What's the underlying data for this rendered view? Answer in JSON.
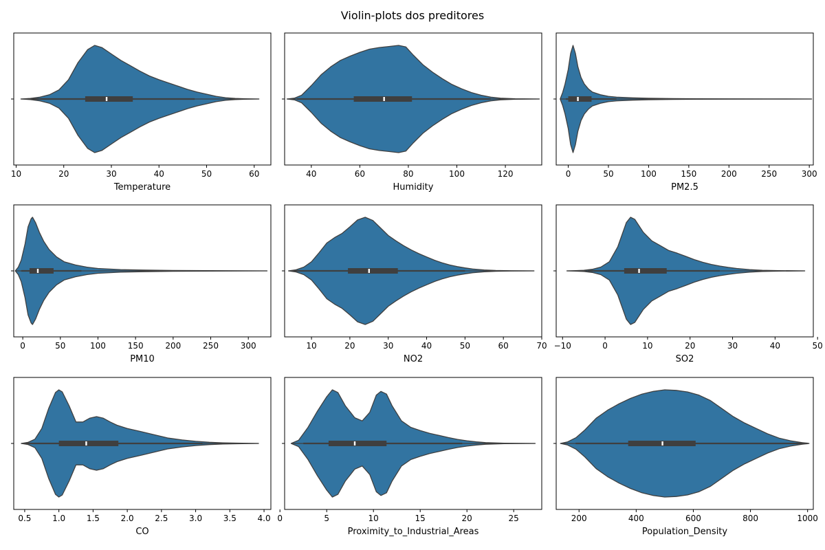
{
  "figure": {
    "title": "Violin-plots dos preditores"
  },
  "style": {
    "violin_fill": "#3274a1",
    "violin_edge": "#3f3f3f",
    "box_color": "#3f3f3f",
    "median_color": "#ffffff"
  },
  "chart_data": [
    {
      "type": "violin",
      "xlabel": "Temperature",
      "xlim": [
        9.5,
        63.5
      ],
      "ticks": [
        10,
        20,
        30,
        40,
        50,
        60
      ],
      "data_range": [
        11,
        61
      ],
      "whiskers": [
        13.5,
        47.5
      ],
      "quartiles": [
        24.5,
        34.5
      ],
      "median": 29,
      "density": [
        [
          11,
          0
        ],
        [
          13,
          0.012
        ],
        [
          15,
          0.035
        ],
        [
          17,
          0.08
        ],
        [
          19,
          0.17
        ],
        [
          21,
          0.36
        ],
        [
          23,
          0.68
        ],
        [
          25,
          0.92
        ],
        [
          26.5,
          1.0
        ],
        [
          28,
          0.96
        ],
        [
          30,
          0.84
        ],
        [
          32,
          0.72
        ],
        [
          34,
          0.62
        ],
        [
          36,
          0.52
        ],
        [
          38,
          0.43
        ],
        [
          40,
          0.36
        ],
        [
          42,
          0.3
        ],
        [
          44,
          0.24
        ],
        [
          46,
          0.18
        ],
        [
          48,
          0.13
        ],
        [
          50,
          0.09
        ],
        [
          52,
          0.05
        ],
        [
          54,
          0.025
        ],
        [
          56,
          0.012
        ],
        [
          58,
          0.005
        ],
        [
          61,
          0
        ]
      ]
    },
    {
      "type": "violin",
      "xlabel": "Humidity",
      "xlim": [
        29,
        135
      ],
      "ticks": [
        40,
        60,
        80,
        100,
        120
      ],
      "data_range": [
        30,
        134
      ],
      "whiskers": [
        34,
        114
      ],
      "quartiles": [
        57.5,
        81.5
      ],
      "median": 70,
      "density": [
        [
          30,
          0
        ],
        [
          33,
          0.015
        ],
        [
          36,
          0.07
        ],
        [
          40,
          0.25
        ],
        [
          44,
          0.45
        ],
        [
          48,
          0.6
        ],
        [
          52,
          0.72
        ],
        [
          56,
          0.8
        ],
        [
          60,
          0.87
        ],
        [
          64,
          0.93
        ],
        [
          68,
          0.96
        ],
        [
          72,
          0.98
        ],
        [
          76,
          1.0
        ],
        [
          79,
          0.97
        ],
        [
          82,
          0.82
        ],
        [
          86,
          0.64
        ],
        [
          90,
          0.5
        ],
        [
          94,
          0.38
        ],
        [
          98,
          0.27
        ],
        [
          102,
          0.19
        ],
        [
          106,
          0.12
        ],
        [
          110,
          0.07
        ],
        [
          114,
          0.035
        ],
        [
          118,
          0.015
        ],
        [
          124,
          0.005
        ],
        [
          134,
          0
        ]
      ]
    },
    {
      "type": "violin",
      "xlabel": "PM2.5",
      "xlim": [
        -15,
        305
      ],
      "ticks": [
        0,
        50,
        100,
        150,
        200,
        250,
        300
      ],
      "data_range": [
        -10,
        303
      ],
      "whiskers": [
        -3,
        60
      ],
      "quartiles": [
        0,
        29
      ],
      "median": 12,
      "density": [
        [
          -10,
          0
        ],
        [
          -7,
          0.12
        ],
        [
          -4,
          0.28
        ],
        [
          0,
          0.55
        ],
        [
          3,
          0.85
        ],
        [
          6,
          1.0
        ],
        [
          9,
          0.85
        ],
        [
          12,
          0.6
        ],
        [
          16,
          0.4
        ],
        [
          20,
          0.28
        ],
        [
          25,
          0.19
        ],
        [
          30,
          0.13
        ],
        [
          40,
          0.08
        ],
        [
          50,
          0.05
        ],
        [
          60,
          0.035
        ],
        [
          80,
          0.022
        ],
        [
          100,
          0.014
        ],
        [
          130,
          0.008
        ],
        [
          160,
          0.005
        ],
        [
          200,
          0.003
        ],
        [
          250,
          0.0015
        ],
        [
          303,
          0
        ]
      ]
    },
    {
      "type": "violin",
      "xlabel": "PM10",
      "xlim": [
        -12,
        330
      ],
      "ticks": [
        0,
        50,
        100,
        150,
        200,
        250,
        300
      ],
      "data_range": [
        -10,
        325
      ],
      "whiskers": [
        -2,
        78
      ],
      "quartiles": [
        9,
        41
      ],
      "median": 20,
      "density": [
        [
          -10,
          0
        ],
        [
          -6,
          0.07
        ],
        [
          -2,
          0.2
        ],
        [
          3,
          0.5
        ],
        [
          7,
          0.82
        ],
        [
          11,
          0.97
        ],
        [
          13,
          1.0
        ],
        [
          17,
          0.9
        ],
        [
          22,
          0.72
        ],
        [
          28,
          0.55
        ],
        [
          35,
          0.4
        ],
        [
          45,
          0.26
        ],
        [
          55,
          0.17
        ],
        [
          70,
          0.11
        ],
        [
          85,
          0.07
        ],
        [
          100,
          0.045
        ],
        [
          130,
          0.025
        ],
        [
          160,
          0.015
        ],
        [
          200,
          0.008
        ],
        [
          250,
          0.004
        ],
        [
          325,
          0
        ]
      ]
    },
    {
      "type": "violin",
      "xlabel": "NO2",
      "xlim": [
        3,
        70
      ],
      "ticks": [
        10,
        20,
        30,
        40,
        50,
        60,
        70
      ],
      "data_range": [
        4,
        68
      ],
      "whiskers": [
        5,
        50
      ],
      "quartiles": [
        19.5,
        32.5
      ],
      "median": 25,
      "density": [
        [
          4,
          0
        ],
        [
          6,
          0.02
        ],
        [
          8,
          0.07
        ],
        [
          10,
          0.17
        ],
        [
          12,
          0.34
        ],
        [
          14,
          0.52
        ],
        [
          16,
          0.62
        ],
        [
          18,
          0.7
        ],
        [
          20,
          0.82
        ],
        [
          22,
          0.95
        ],
        [
          24,
          1.0
        ],
        [
          26,
          0.94
        ],
        [
          28,
          0.8
        ],
        [
          30,
          0.66
        ],
        [
          32,
          0.56
        ],
        [
          34,
          0.47
        ],
        [
          36,
          0.39
        ],
        [
          38,
          0.32
        ],
        [
          40,
          0.26
        ],
        [
          42,
          0.2
        ],
        [
          44,
          0.15
        ],
        [
          46,
          0.11
        ],
        [
          48,
          0.08
        ],
        [
          50,
          0.055
        ],
        [
          52,
          0.035
        ],
        [
          55,
          0.018
        ],
        [
          58,
          0.008
        ],
        [
          62,
          0.003
        ],
        [
          68,
          0
        ]
      ]
    },
    {
      "type": "violin",
      "xlabel": "SO2",
      "xlim": [
        -11.5,
        49
      ],
      "ticks": [
        -10,
        0,
        10,
        20,
        30,
        40,
        50
      ],
      "data_range": [
        -9,
        47
      ],
      "whiskers": [
        -4,
        27
      ],
      "quartiles": [
        4.5,
        14.5
      ],
      "median": 8,
      "density": [
        [
          -9,
          0
        ],
        [
          -7,
          0.005
        ],
        [
          -5,
          0.012
        ],
        [
          -3,
          0.03
        ],
        [
          -1,
          0.07
        ],
        [
          1,
          0.17
        ],
        [
          3,
          0.45
        ],
        [
          5,
          0.9
        ],
        [
          6,
          1.0
        ],
        [
          7,
          0.96
        ],
        [
          9,
          0.72
        ],
        [
          11,
          0.56
        ],
        [
          13,
          0.47
        ],
        [
          15,
          0.38
        ],
        [
          17,
          0.33
        ],
        [
          19,
          0.27
        ],
        [
          21,
          0.21
        ],
        [
          23,
          0.16
        ],
        [
          25,
          0.12
        ],
        [
          27,
          0.09
        ],
        [
          29,
          0.065
        ],
        [
          31,
          0.045
        ],
        [
          34,
          0.025
        ],
        [
          37,
          0.012
        ],
        [
          41,
          0.005
        ],
        [
          47,
          0
        ]
      ]
    },
    {
      "type": "violin",
      "xlabel": "CO",
      "xlim": [
        0.34,
        4.1
      ],
      "ticks": [
        0.5,
        1.0,
        1.5,
        2.0,
        2.5,
        3.0,
        3.5,
        4.0
      ],
      "tick_labels": [
        "0.5",
        "1.0",
        "1.5",
        "2.0",
        "2.5",
        "3.0",
        "3.5",
        "4.0"
      ],
      "data_range": [
        0.45,
        3.92
      ],
      "whiskers": [
        0.5,
        3.1
      ],
      "quartiles": [
        1.0,
        1.87
      ],
      "median": 1.4,
      "density": [
        [
          0.45,
          0
        ],
        [
          0.55,
          0.02
        ],
        [
          0.65,
          0.08
        ],
        [
          0.75,
          0.28
        ],
        [
          0.85,
          0.65
        ],
        [
          0.95,
          0.95
        ],
        [
          1.0,
          1.0
        ],
        [
          1.05,
          0.96
        ],
        [
          1.15,
          0.7
        ],
        [
          1.25,
          0.4
        ],
        [
          1.35,
          0.4
        ],
        [
          1.45,
          0.47
        ],
        [
          1.55,
          0.5
        ],
        [
          1.65,
          0.47
        ],
        [
          1.75,
          0.4
        ],
        [
          1.85,
          0.34
        ],
        [
          2.0,
          0.28
        ],
        [
          2.2,
          0.22
        ],
        [
          2.4,
          0.16
        ],
        [
          2.6,
          0.1
        ],
        [
          2.8,
          0.065
        ],
        [
          3.0,
          0.04
        ],
        [
          3.2,
          0.022
        ],
        [
          3.4,
          0.012
        ],
        [
          3.6,
          0.006
        ],
        [
          3.92,
          0
        ]
      ]
    },
    {
      "type": "violin",
      "xlabel": "Proximity_to_Industrial_Areas",
      "xlim": [
        0.5,
        28
      ],
      "ticks": [
        0,
        5,
        10,
        15,
        20,
        25
      ],
      "data_range": [
        1.2,
        27.3
      ],
      "whiskers": [
        2.5,
        19.5
      ],
      "quartiles": [
        5.2,
        11.4
      ],
      "median": 8,
      "density": [
        [
          1.2,
          0
        ],
        [
          2,
          0.06
        ],
        [
          3,
          0.3
        ],
        [
          4,
          0.6
        ],
        [
          5,
          0.87
        ],
        [
          5.6,
          1.0
        ],
        [
          6.2,
          0.95
        ],
        [
          7,
          0.7
        ],
        [
          8,
          0.48
        ],
        [
          8.8,
          0.42
        ],
        [
          9.6,
          0.58
        ],
        [
          10.3,
          0.9
        ],
        [
          10.8,
          0.97
        ],
        [
          11.4,
          0.92
        ],
        [
          12,
          0.7
        ],
        [
          13,
          0.42
        ],
        [
          14,
          0.3
        ],
        [
          15,
          0.24
        ],
        [
          16,
          0.19
        ],
        [
          17,
          0.15
        ],
        [
          18,
          0.11
        ],
        [
          19,
          0.075
        ],
        [
          20,
          0.05
        ],
        [
          21,
          0.03
        ],
        [
          22,
          0.015
        ],
        [
          24,
          0.005
        ],
        [
          27.3,
          0
        ]
      ]
    },
    {
      "type": "violin",
      "xlabel": "Population_Density",
      "xlim": [
        120,
        1020
      ],
      "ticks": [
        200,
        400,
        600,
        800,
        1000
      ],
      "data_range": [
        135,
        1005
      ],
      "whiskers": [
        188,
        1000
      ],
      "quartiles": [
        372,
        608
      ],
      "median": 492,
      "density": [
        [
          135,
          0
        ],
        [
          160,
          0.03
        ],
        [
          190,
          0.11
        ],
        [
          220,
          0.25
        ],
        [
          260,
          0.47
        ],
        [
          300,
          0.62
        ],
        [
          340,
          0.74
        ],
        [
          380,
          0.84
        ],
        [
          420,
          0.92
        ],
        [
          460,
          0.97
        ],
        [
          500,
          1.0
        ],
        [
          540,
          0.99
        ],
        [
          580,
          0.96
        ],
        [
          620,
          0.9
        ],
        [
          660,
          0.8
        ],
        [
          700,
          0.65
        ],
        [
          740,
          0.5
        ],
        [
          780,
          0.38
        ],
        [
          820,
          0.28
        ],
        [
          860,
          0.18
        ],
        [
          900,
          0.1
        ],
        [
          940,
          0.05
        ],
        [
          980,
          0.015
        ],
        [
          1005,
          0
        ]
      ]
    }
  ]
}
